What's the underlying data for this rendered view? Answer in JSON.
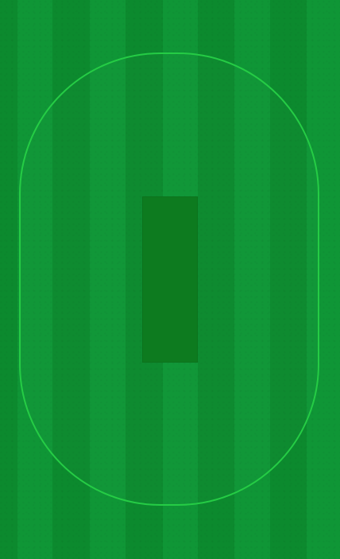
{
  "field": {
    "surface": "grass",
    "stripe_colors": [
      "#0c8a2e",
      "#0f9636"
    ]
  },
  "boundary": {
    "line_color": "#25cc45"
  },
  "pitch": {
    "color": "#0d7b1f"
  }
}
